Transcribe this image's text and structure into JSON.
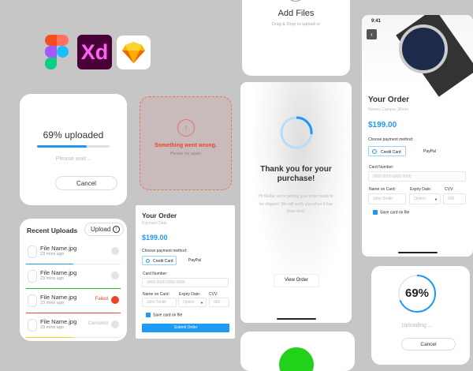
{
  "logos": [
    "figma-logo",
    "adobe-xd-logo",
    "sketch-logo"
  ],
  "xd_text": "Xd",
  "upload_card": {
    "title": "69% uploaded",
    "progress": 69,
    "subtitle": "Please wait...",
    "cancel": "Cancel"
  },
  "error_card": {
    "title": "Something went wrong.",
    "subtitle": "Please try again"
  },
  "recent_uploads": {
    "title": "Recent Uploads",
    "upload_button": "Upload",
    "files": [
      {
        "name": "File Name.jpg",
        "time": "23 mins ago",
        "status": "",
        "progress": 50,
        "color": "#2196f3"
      },
      {
        "name": "File Name.jpg",
        "time": "23 mins ago",
        "status": "",
        "progress": 100,
        "color": "#22c02a"
      },
      {
        "name": "File Name.jpg",
        "time": "23 mins ago",
        "status": "Failed",
        "progress": 100,
        "color": "#e8452c"
      },
      {
        "name": "File Name.jpg",
        "time": "23 mins ago",
        "status": "Canceled",
        "progress": 50,
        "color": "#f2d41c"
      }
    ]
  },
  "order_small": {
    "title": "Your Order",
    "subtitle": "Payment Data",
    "price": "$199.00",
    "choose": "Choose payment method:",
    "credit": "Credit Card",
    "paypal": "PayPal",
    "card_number_label": "Card Number:",
    "card_number_ph": "0000 0000 0000 0000",
    "name_label": "Name on Card:",
    "name_ph": "John Smith",
    "expiry_label": "Expiry Date:",
    "expiry_ph": "Option",
    "cvv_label": "CVV:",
    "cvv_ph": "000",
    "save": "Save card on file",
    "submit": "Submit Order"
  },
  "add_files": {
    "title": "Add Files",
    "subtitle": "Drag & Drop to upload or"
  },
  "thank_you": {
    "title": "Thank you for your purchase!",
    "body": "Hi Stellar, we're getting your order ready to be shipped. We will notify you when it has been sent.",
    "button": "View Order"
  },
  "phone_order": {
    "time": "9:41",
    "title": "Your Order",
    "subtitle": "Nomos Campus 38mm",
    "price": "$199.00",
    "choose": "Choose payment method:",
    "credit": "Credit Card",
    "paypal": "PayPal",
    "card_number_label": "Card Number:",
    "card_number_ph": "0000 0000 0000 0000",
    "name_label": "Name on Card:",
    "name_ph": "John Smith",
    "expiry_label": "Expiry Date:",
    "expiry_ph": "Option",
    "cvv_label": "CVV:",
    "cvv_ph": "000",
    "save": "Save card on file"
  },
  "circle_upload": {
    "percent_label": "69%",
    "progress": 69,
    "subtitle": "Uploading ...",
    "cancel": "Cancel"
  },
  "colors": {
    "accent": "#2196f3",
    "error": "#e8452c",
    "success": "#22c02a",
    "background": "#c6c6c6"
  }
}
